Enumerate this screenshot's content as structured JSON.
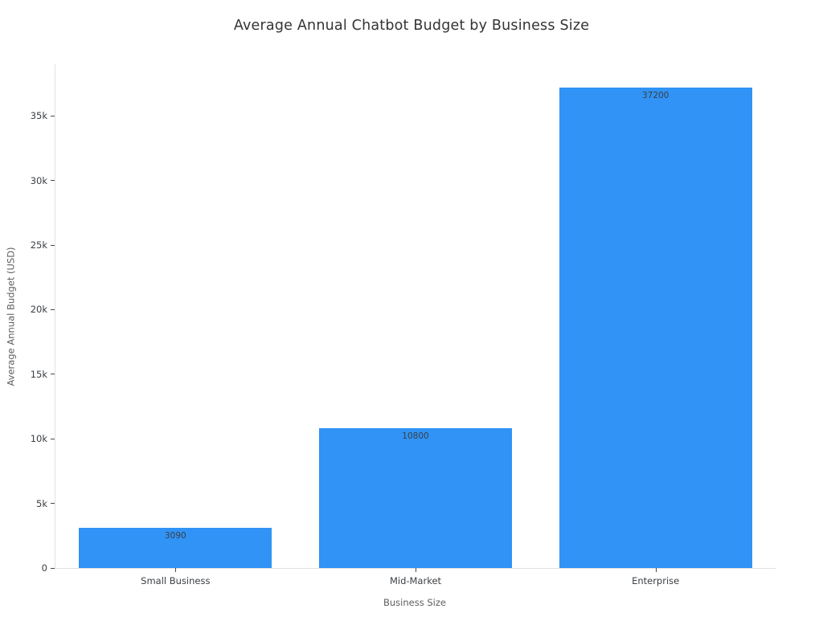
{
  "chart_data": {
    "type": "bar",
    "title": "Average Annual Chatbot Budget by Business Size",
    "xlabel": "Business Size",
    "ylabel": "Average Annual Budget (USD)",
    "categories": [
      "Small Business",
      "Mid-Market",
      "Enterprise"
    ],
    "values": [
      3090,
      10800,
      37200
    ],
    "value_labels": [
      "3090",
      "10800",
      "37200"
    ],
    "ylim": [
      0,
      39000
    ],
    "yticks": [
      {
        "value": 0,
        "label": "0"
      },
      {
        "value": 5000,
        "label": "5k"
      },
      {
        "value": 10000,
        "label": "10k"
      },
      {
        "value": 15000,
        "label": "15k"
      },
      {
        "value": 20000,
        "label": "20k"
      },
      {
        "value": 25000,
        "label": "25k"
      },
      {
        "value": 30000,
        "label": "30k"
      },
      {
        "value": 35000,
        "label": "35k"
      }
    ],
    "grid": "off",
    "legend": "none",
    "colors": {
      "bar": "#3093F5",
      "bar_value_label": "#3A3F47",
      "axis_line": "#E2E2E2",
      "tick_mark": "#47494E",
      "tick_label": "#3B3F44",
      "axis_title": "#5E5E5E",
      "title": "#333333",
      "background": "#FFFFFF"
    }
  }
}
